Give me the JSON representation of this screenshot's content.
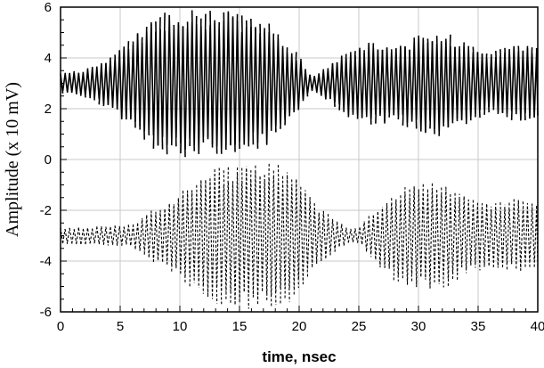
{
  "chart_data": {
    "type": "line",
    "title": "",
    "xlabel": "time, nsec",
    "ylabel": "Amplitude (x 10 mV)",
    "xlim": [
      0,
      40
    ],
    "ylim": [
      -6,
      6
    ],
    "x_ticks": [
      0,
      5,
      10,
      15,
      20,
      25,
      30,
      35,
      40
    ],
    "y_ticks": [
      -6,
      -4,
      -2,
      0,
      2,
      4,
      6
    ],
    "grid": true,
    "legend": "none",
    "carrier_period_nsec": 0.38,
    "series": [
      {
        "style": "solid",
        "color": "#000000",
        "center": 3.0,
        "envelope_x": [
          0,
          2,
          4,
          6,
          8,
          10,
          12,
          14,
          15,
          17,
          18,
          20,
          21,
          22,
          24,
          26,
          28,
          30,
          32,
          34,
          36,
          38,
          40
        ],
        "envelope_half_amplitude": [
          0.35,
          0.5,
          0.9,
          1.6,
          2.4,
          2.65,
          2.55,
          2.6,
          2.45,
          2.3,
          1.9,
          1.0,
          0.25,
          0.5,
          1.2,
          1.5,
          1.4,
          1.7,
          1.9,
          1.5,
          1.1,
          1.35,
          1.45
        ]
      },
      {
        "style": "dashed",
        "color": "#000000",
        "center": -3.0,
        "envelope_x": [
          0,
          2,
          4,
          6,
          7,
          9,
          11,
          13,
          15,
          17,
          19,
          20,
          21,
          23,
          24,
          25,
          26,
          28,
          30,
          32,
          34,
          36,
          38,
          40
        ],
        "envelope_half_amplitude": [
          0.3,
          0.3,
          0.35,
          0.4,
          0.7,
          1.3,
          1.9,
          2.4,
          2.6,
          2.6,
          2.5,
          2.0,
          1.3,
          0.6,
          0.3,
          0.25,
          0.8,
          1.6,
          1.9,
          1.9,
          1.4,
          1.1,
          1.3,
          1.1
        ]
      }
    ]
  }
}
